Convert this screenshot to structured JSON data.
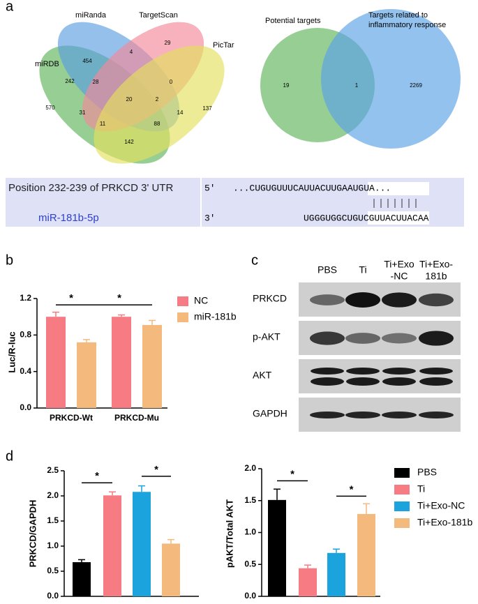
{
  "panels": [
    "a",
    "b",
    "c",
    "d"
  ],
  "chart_data": [
    {
      "type": "venn",
      "sets": [
        {
          "name": "miRDB",
          "color": "#5db35a"
        },
        {
          "name": "miRanda",
          "color": "#5b9ee0"
        },
        {
          "name": "TargetScan",
          "color": "#f2899a"
        },
        {
          "name": "PicTar",
          "color": "#e3e05c"
        }
      ],
      "regions": [
        454,
        29,
        4,
        242,
        0,
        28,
        2,
        570,
        137,
        20,
        31,
        14,
        11,
        88,
        142
      ]
    },
    {
      "type": "venn",
      "sets": [
        {
          "name": [
            "Potential targets"
          ],
          "color": "#5db35a"
        },
        {
          "name": [
            "Targets related to",
            "inflammatory response"
          ],
          "color": "#5aa2e6"
        }
      ],
      "regions": [
        19,
        1,
        2269
      ]
    },
    {
      "type": "bar",
      "y_label": "Luc/R-luc",
      "categories": [
        "PRKCD-Wt",
        "PRKCD-Mu"
      ],
      "series": [
        {
          "name": "NC",
          "color": "#f77b82",
          "values": [
            1.0,
            1.0
          ],
          "errors": [
            0.05,
            0.02
          ]
        },
        {
          "name": "miR-181b",
          "color": "#f4b97c",
          "values": [
            0.72,
            0.91
          ],
          "errors": [
            0.03,
            0.05
          ]
        }
      ],
      "ylim": [
        0,
        1.2
      ],
      "yticks": [
        {
          "value": 0,
          "label": "0.0"
        },
        0.4,
        0.8,
        1.2
      ],
      "annotations": [
        {
          "text": "*",
          "bars": [
            0,
            1
          ],
          "y": 1.13
        },
        {
          "text": "*",
          "bars": [
            1,
            3
          ],
          "y": 1.13
        }
      ]
    },
    {
      "type": "bar",
      "y_label": "PRKCD/GAPDH",
      "series": [
        {
          "name": "PBS",
          "color": "#000000",
          "values": [
            0.68
          ],
          "errors": [
            0.05
          ]
        },
        {
          "name": "Ti",
          "color": "#f77b82",
          "values": [
            2.01
          ],
          "errors": [
            0.07
          ]
        },
        {
          "name": "Ti+Exo-NC",
          "color": "#1aa3dc",
          "values": [
            2.08
          ],
          "errors": [
            0.12
          ]
        },
        {
          "name": "Ti+Exo-181b",
          "color": "#f4b97c",
          "values": [
            1.05
          ],
          "errors": [
            0.08
          ]
        }
      ],
      "ylim": [
        0,
        2.5
      ],
      "yticks": [
        {
          "value": 0,
          "label": "0.0"
        },
        0.5,
        {
          "value": 1,
          "label": "1.0"
        },
        1.5,
        {
          "value": 2,
          "label": "2.0"
        },
        2.5
      ],
      "annotations": [
        {
          "text": "*",
          "bars": [
            0,
            1
          ],
          "y": 2.26
        },
        {
          "text": "*",
          "bars": [
            2,
            3
          ],
          "y": 2.39
        }
      ]
    },
    {
      "type": "bar",
      "y_label": "pAKT/Total AKT",
      "series": [
        {
          "values": [
            1.51
          ],
          "errors": [
            0.17
          ]
        },
        {
          "values": [
            0.44
          ],
          "errors": [
            0.05
          ]
        },
        {
          "values": [
            0.68
          ],
          "errors": [
            0.06
          ]
        },
        {
          "values": [
            1.29
          ],
          "errors": [
            0.16
          ]
        }
      ],
      "ylim": [
        0,
        2.0
      ],
      "yticks": [
        {
          "value": 0,
          "label": "0.0"
        },
        0.5,
        {
          "value": 1,
          "label": "1.0"
        },
        1.5,
        {
          "value": 2,
          "label": "2.0"
        }
      ],
      "annotations": [
        {
          "text": "*",
          "bars": [
            0,
            1
          ],
          "y": 1.81
        },
        {
          "text": "*",
          "bars": [
            2,
            3
          ],
          "y": 1.57
        }
      ]
    }
  ],
  "sequence": {
    "target_label": "Position 232-239 of PRKCD 3' UTR",
    "target_end": "5'",
    "target_seq": "...CUGUGUUUCAUUACUUGAAUGUA...",
    "mirna_label": "miR-181b-5p",
    "mirna_end": "3'",
    "mirna_seq": "UGGGUGGCUGUCGUUACUUACAA"
  },
  "blot": {
    "lanes": [
      [
        "PBS"
      ],
      [
        "Ti"
      ],
      [
        "Ti+Exo",
        "-NC"
      ],
      [
        "Ti+Exo-",
        "181b"
      ]
    ],
    "rows": [
      "PRKCD",
      "p-AKT",
      "AKT",
      "GAPDH"
    ]
  }
}
